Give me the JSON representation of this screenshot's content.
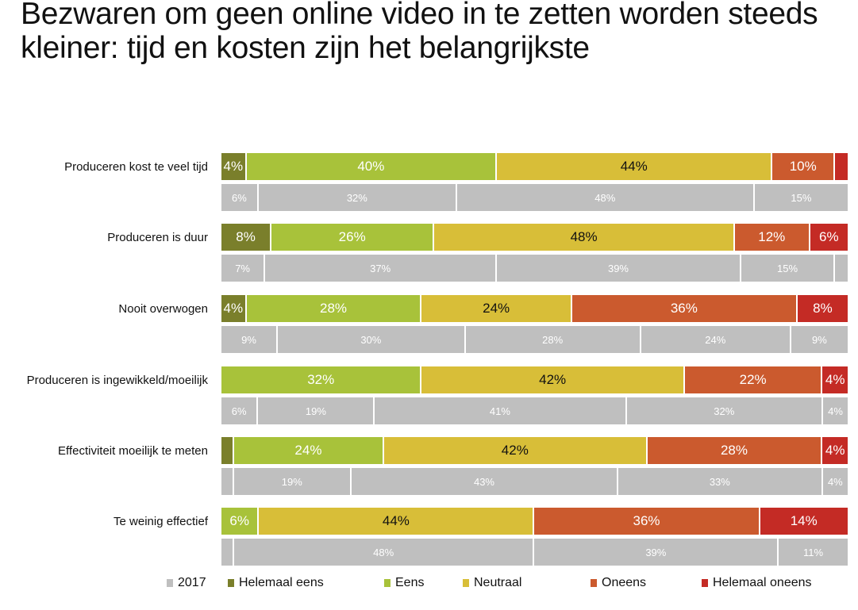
{
  "title": "Bezwaren om geen online video in te zetten worden steeds kleiner: tijd en kosten zijn het belangrijkste",
  "chart_data": {
    "type": "bar",
    "orientation": "horizontal-stacked-100",
    "title": "Bezwaren om geen online video in te zetten worden steeds kleiner: tijd en kosten zijn het belangrijkste",
    "categories": [
      "Produceren kost te veel tijd",
      "Produceren is duur",
      "Nooit overwogen",
      "Produceren is ingewikkeld/moeilijk",
      "Effectiviteit moeilijk te meten",
      "Te weinig effectief"
    ],
    "series": [
      {
        "name": "Helemaal eens",
        "color": "#7a7f2b",
        "text_color": "#ffffff",
        "values": [
          4,
          8,
          4,
          0,
          2,
          0
        ],
        "labels": [
          "4%",
          "8%",
          "4%",
          "",
          "",
          ""
        ]
      },
      {
        "name": "Eens",
        "color": "#a8c23a",
        "text_color": "#ffffff",
        "values": [
          40,
          26,
          28,
          32,
          24,
          6
        ],
        "labels": [
          "40%",
          "26%",
          "28%",
          "32%",
          "24%",
          "6%"
        ]
      },
      {
        "name": "Neutraal",
        "color": "#d8be38",
        "text_color": "#111111",
        "values": [
          44,
          48,
          24,
          42,
          42,
          44
        ],
        "labels": [
          "44%",
          "48%",
          "24%",
          "42%",
          "42%",
          "44%"
        ]
      },
      {
        "name": "Oneens",
        "color": "#cb5a2e",
        "text_color": "#ffffff",
        "values": [
          10,
          12,
          36,
          22,
          28,
          36
        ],
        "labels": [
          "10%",
          "12%",
          "36%",
          "22%",
          "28%",
          "36%"
        ]
      },
      {
        "name": "Helemaal oneens",
        "color": "#c42b25",
        "text_color": "#ffffff",
        "values": [
          2,
          6,
          8,
          4,
          4,
          14
        ],
        "labels": [
          "",
          "6%",
          "8%",
          "4%",
          "4%",
          "14%"
        ]
      }
    ],
    "comparison_2017": {
      "name": "2017",
      "color": "#bfbfbf",
      "rows": [
        {
          "values": [
            6,
            32,
            48,
            15
          ],
          "labels": [
            "6%",
            "32%",
            "48%",
            "15%"
          ]
        },
        {
          "values": [
            7,
            37,
            39,
            15,
            2
          ],
          "labels": [
            "7%",
            "37%",
            "39%",
            "15%",
            ""
          ]
        },
        {
          "values": [
            9,
            30,
            28,
            24,
            9
          ],
          "labels": [
            "9%",
            "30%",
            "28%",
            "24%",
            "9%"
          ]
        },
        {
          "values": [
            6,
            19,
            41,
            32,
            4
          ],
          "labels": [
            "6%",
            "19%",
            "41%",
            "32%",
            "4%"
          ]
        },
        {
          "values": [
            2,
            19,
            43,
            33,
            4
          ],
          "labels": [
            "",
            "19%",
            "43%",
            "33%",
            "4%"
          ]
        },
        {
          "values": [
            2,
            48,
            39,
            11
          ],
          "labels": [
            "",
            "48%",
            "39%",
            "11%"
          ]
        }
      ]
    },
    "legend": [
      "2017",
      "Helemaal eens",
      "Eens",
      "Neutraal",
      "Oneens",
      "Helemaal oneens"
    ],
    "legend_position": "bottom",
    "xlim": [
      0,
      100
    ],
    "grid": false
  }
}
